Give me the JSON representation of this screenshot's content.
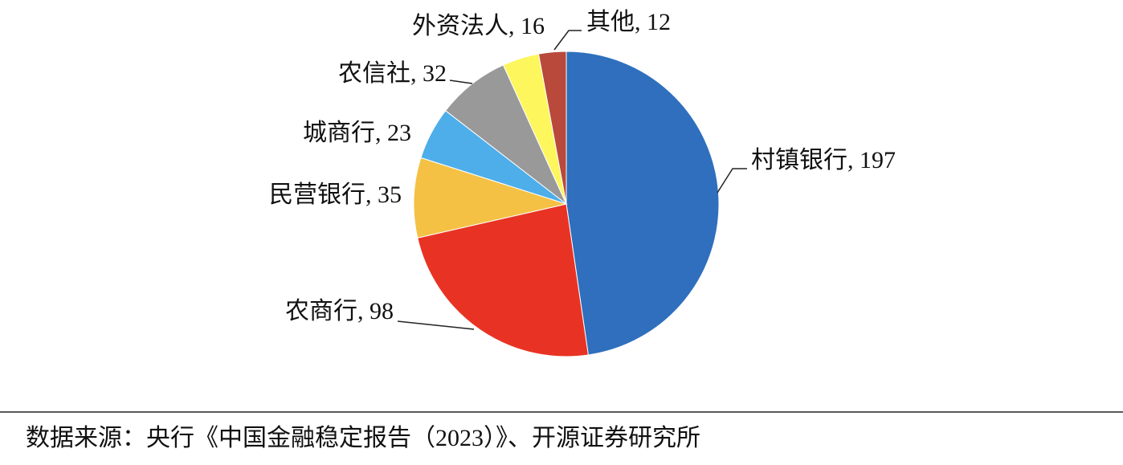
{
  "chart_data": {
    "type": "pie",
    "categories": [
      "村镇银行",
      "农商行",
      "民营银行",
      "城商行",
      "农信社",
      "外资法人",
      "其他"
    ],
    "values": [
      197,
      98,
      35,
      23,
      32,
      16,
      12
    ],
    "colors": [
      "#2f6fbd",
      "#e83324",
      "#f4c145",
      "#4eaeea",
      "#999999",
      "#fdf65c",
      "#b8493b"
    ],
    "label_separator": ", ",
    "source": "数据来源：央行《中国金融稳定报告（2023）》、开源证券研究所"
  }
}
